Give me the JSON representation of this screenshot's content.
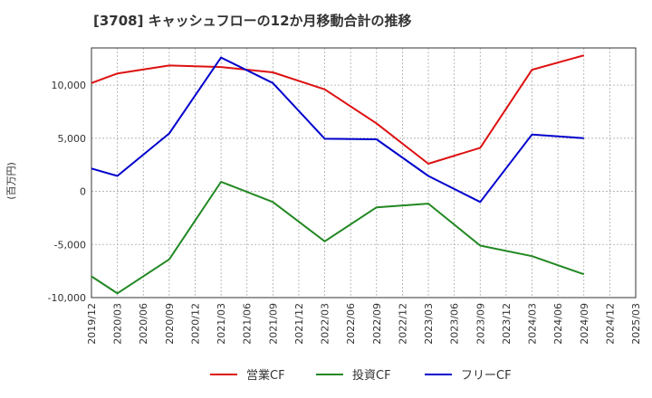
{
  "chart_data": {
    "type": "line",
    "title": "[3708]  キャッシュフローの12か月移動合計の推移",
    "ylabel": "(百万円)",
    "xlabel": "",
    "ylim": [
      -10000,
      13500
    ],
    "yticks": [
      10000,
      5000,
      0,
      -5000,
      -10000
    ],
    "ytick_labels": [
      "10,000",
      "5,000",
      "0",
      "-5,000",
      "-10,000"
    ],
    "categories": [
      "2019/12",
      "2020/03",
      "2020/06",
      "2020/09",
      "2020/12",
      "2021/03",
      "2021/06",
      "2021/09",
      "2021/12",
      "2022/03",
      "2022/06",
      "2022/09",
      "2022/12",
      "2023/03",
      "2023/06",
      "2023/09",
      "2023/12",
      "2024/03",
      "2024/06",
      "2024/09",
      "2024/12",
      "2025/03"
    ],
    "grid": true,
    "legend_position": "bottom",
    "series": [
      {
        "name": "営業CF",
        "color": "#dd1111",
        "values": [
          10200,
          11100,
          null,
          11850,
          null,
          11700,
          null,
          11200,
          null,
          9600,
          null,
          6400,
          null,
          2600,
          null,
          4100,
          null,
          11450,
          null,
          12800,
          null,
          null
        ]
      },
      {
        "name": "投資CF",
        "color": "#228822",
        "values": [
          -8000,
          -9600,
          null,
          -6400,
          null,
          900,
          null,
          -1000,
          null,
          -4700,
          null,
          -1500,
          null,
          -1150,
          null,
          -5100,
          null,
          -6100,
          null,
          -7800,
          null,
          null
        ]
      },
      {
        "name": "フリーCF",
        "color": "#0000cc",
        "values": [
          2150,
          1450,
          null,
          5450,
          null,
          12600,
          null,
          10200,
          null,
          4950,
          null,
          4900,
          null,
          1450,
          null,
          -1000,
          null,
          5350,
          null,
          5000,
          null,
          null
        ]
      }
    ]
  }
}
